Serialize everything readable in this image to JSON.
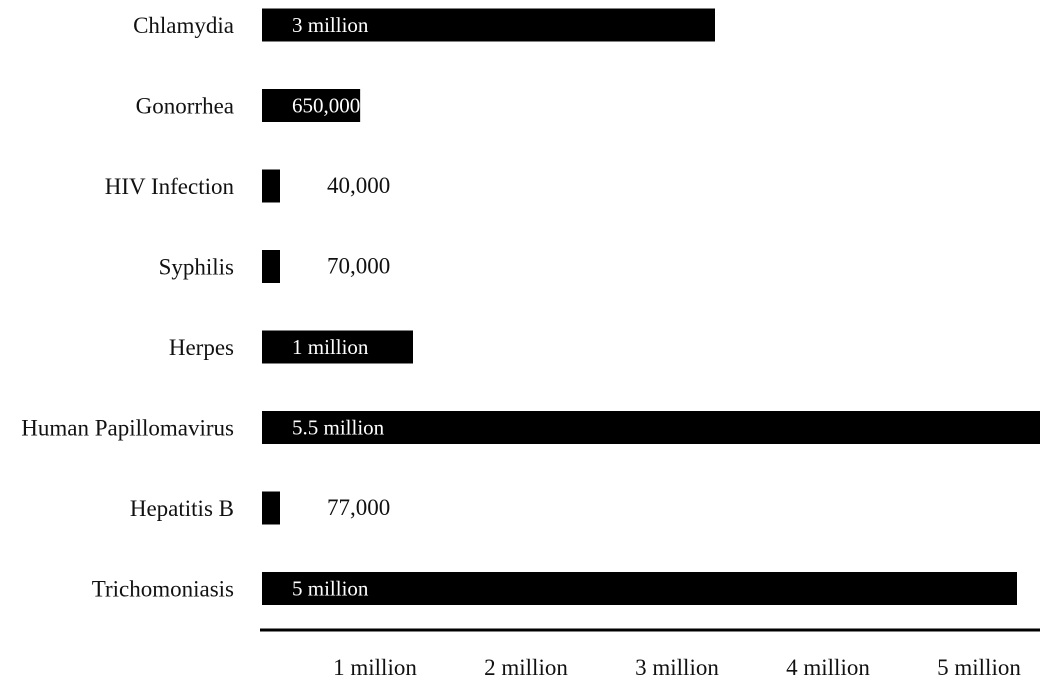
{
  "chart_data": {
    "type": "bar",
    "orientation": "horizontal",
    "categories": [
      "Chlamydia",
      "Gonorrhea",
      "HIV Infection",
      "Syphilis",
      "Herpes",
      "Human Papillomavirus",
      "Hepatitis B",
      "Trichomoniasis"
    ],
    "values": [
      3000000,
      650000,
      40000,
      70000,
      1000000,
      5500000,
      77000,
      5000000
    ],
    "value_labels": [
      "3 million",
      "650,000",
      "40,000",
      "70,000",
      "1 million",
      "5.5 million",
      "77,000",
      "5 million"
    ],
    "x_ticks": [
      1000000,
      2000000,
      3000000,
      4000000,
      5000000
    ],
    "x_tick_labels": [
      "1 million",
      "2 million",
      "3 million",
      "4 million",
      "5 million"
    ],
    "xlim": [
      0,
      5200000
    ],
    "bar_color": "#000000",
    "grid": false,
    "legend": "none"
  }
}
